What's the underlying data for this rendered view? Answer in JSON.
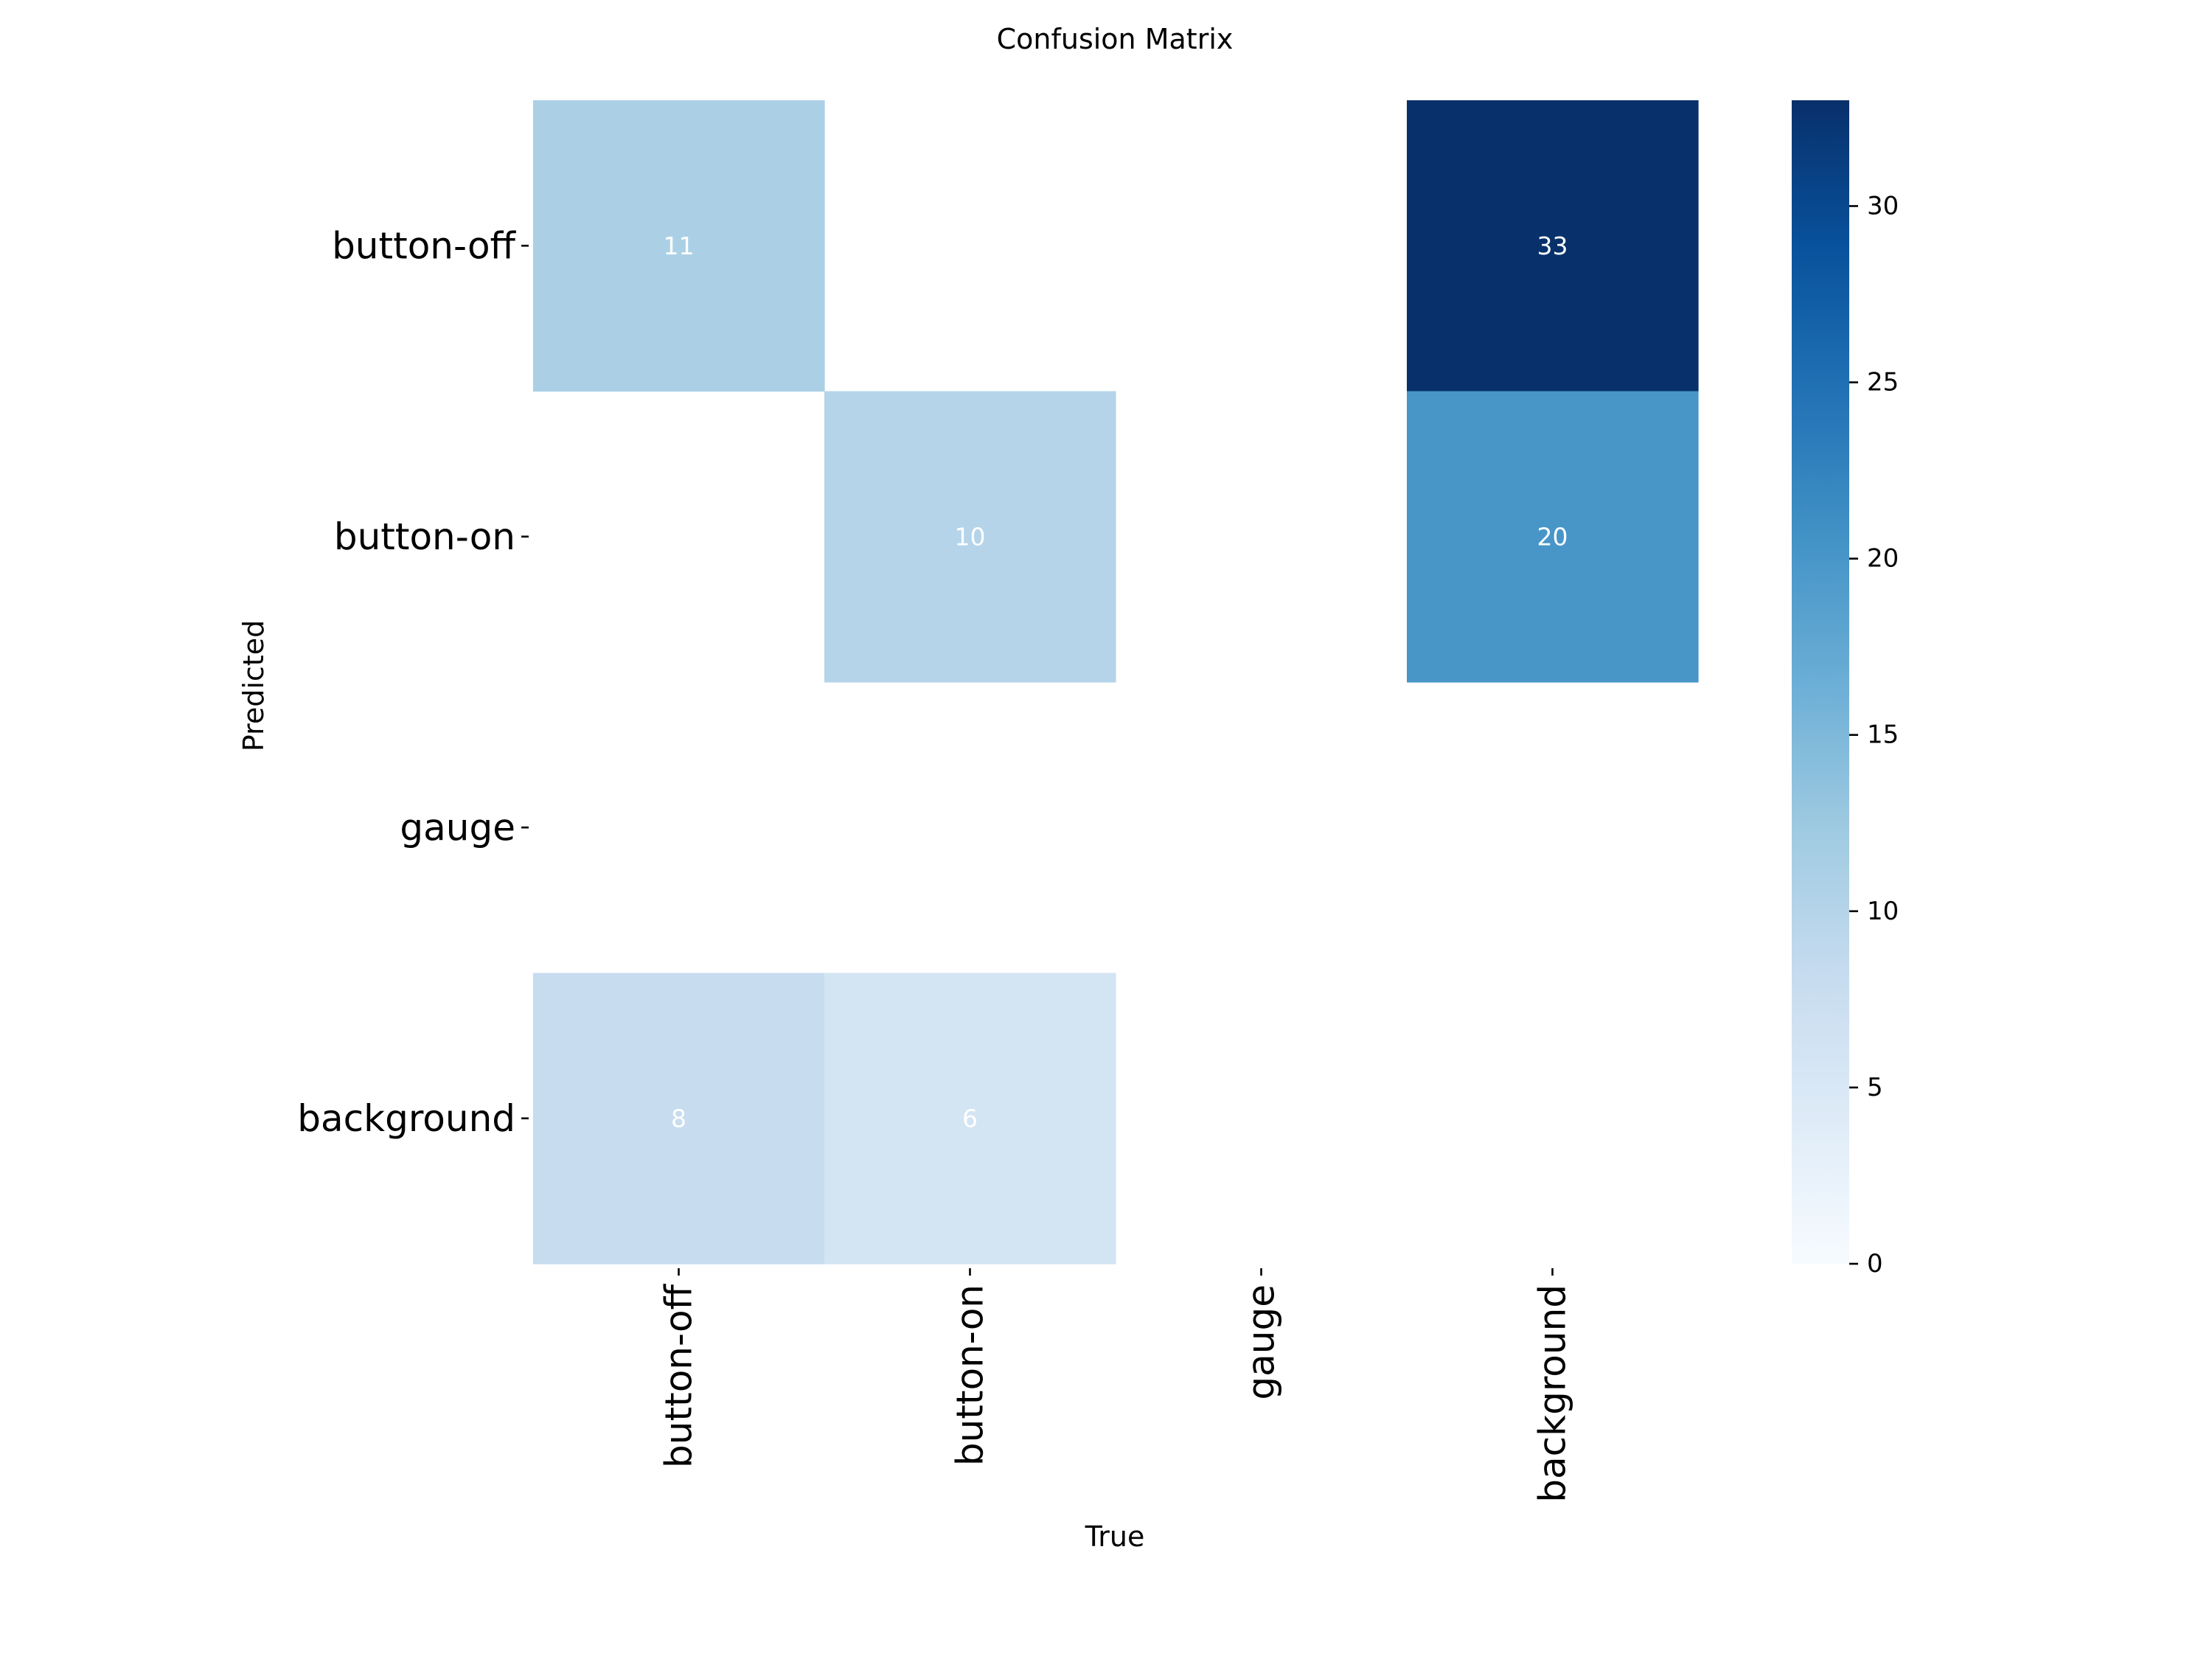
{
  "chart_data": {
    "type": "heatmap",
    "title": "Confusion Matrix",
    "xlabel": "True",
    "ylabel": "Predicted",
    "x_categories": [
      "button-off",
      "button-on",
      "gauge",
      "background"
    ],
    "y_categories": [
      "button-off",
      "button-on",
      "gauge",
      "background"
    ],
    "matrix": [
      [
        11,
        null,
        null,
        33
      ],
      [
        null,
        10,
        null,
        20
      ],
      [
        null,
        null,
        null,
        null
      ],
      [
        8,
        6,
        null,
        null
      ]
    ],
    "colormap": "Blues",
    "colorbar": {
      "min": 0,
      "max": 33,
      "ticks": [
        0,
        5,
        10,
        15,
        20,
        25,
        30
      ]
    },
    "colormap_stops": [
      "#f7fbff",
      "#deebf7",
      "#c6dbef",
      "#9ecae1",
      "#6baed6",
      "#4292c6",
      "#2171b5",
      "#08519c",
      "#08306b"
    ]
  }
}
